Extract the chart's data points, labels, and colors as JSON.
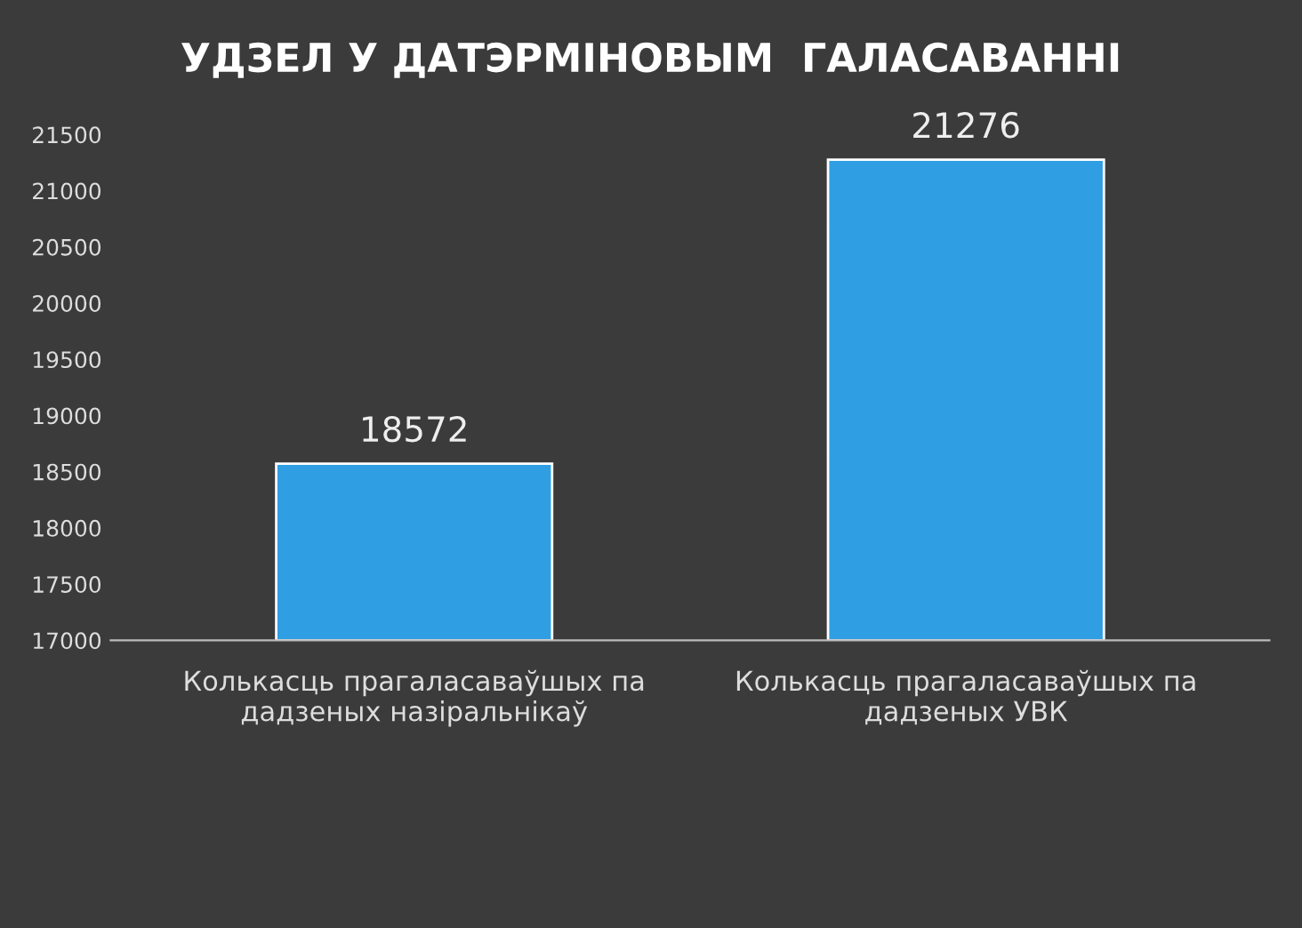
{
  "chart_data": {
    "type": "bar",
    "title": "УДЗЕЛ У ДАТЭРМІНОВЫМ  ГАЛАСАВАННІ",
    "categories": [
      "Колькасць прагаласаваўшых па\nдадзеных назіральнікаў",
      "Колькасць прагаласаваўшых па\nдадзеных УВК"
    ],
    "values": [
      18572,
      21276
    ],
    "color": "#2f9ee3",
    "ylim": [
      17000,
      21500
    ],
    "yticks": [
      17000,
      17500,
      18000,
      18500,
      19000,
      19500,
      20000,
      20500,
      21000,
      21500
    ],
    "grid": false,
    "data_labels": true
  }
}
